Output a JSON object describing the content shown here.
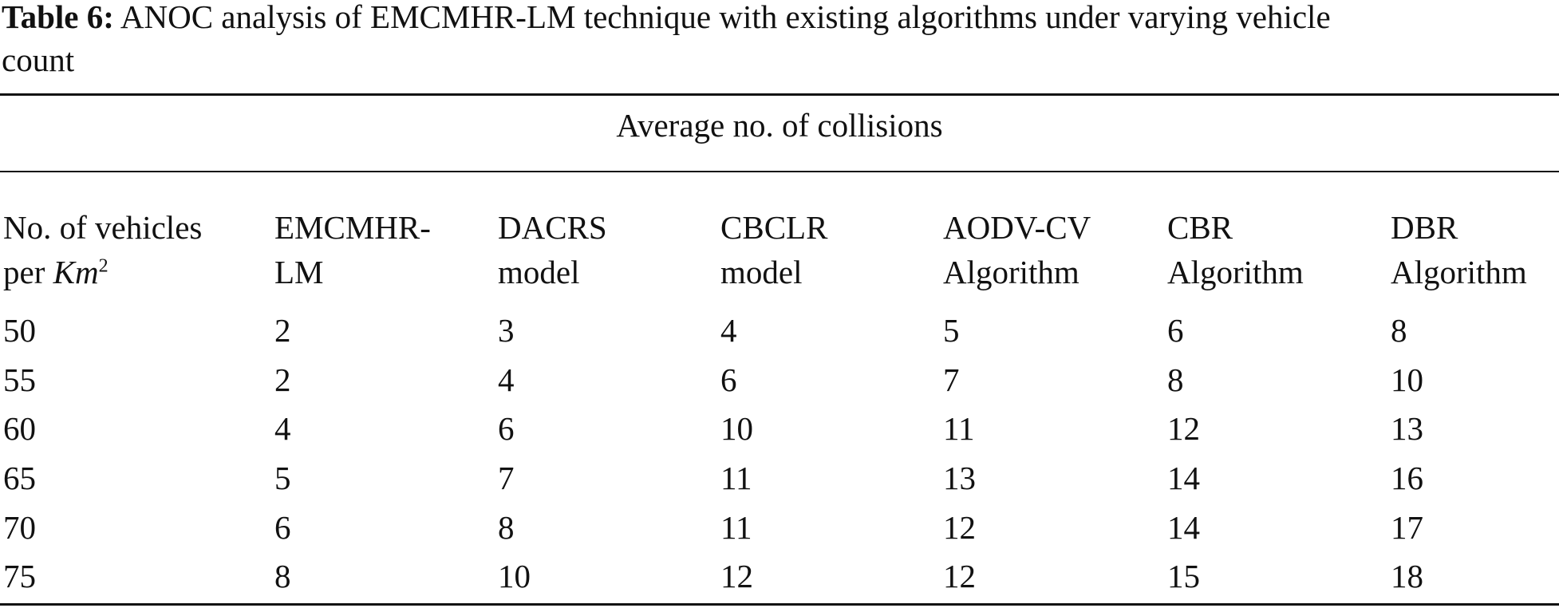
{
  "caption": {
    "label": "Table 6:",
    "text_line1": " ANOC analysis of EMCMHR-LM technique with existing algorithms under varying vehicle",
    "text_line2": "count"
  },
  "group_header": "Average no. of collisions",
  "columns": [
    {
      "line1": "No. of vehicles",
      "line2_prefix": "per ",
      "line2_unit": "Km",
      "line2_sup": "2"
    },
    {
      "line1": "EMCMHR-",
      "line2": "LM"
    },
    {
      "line1": "DACRS",
      "line2": "model"
    },
    {
      "line1": "CBCLR",
      "line2": "model"
    },
    {
      "line1": "AODV-CV",
      "line2": "Algorithm"
    },
    {
      "line1": "CBR",
      "line2": "Algorithm"
    },
    {
      "line1": "DBR",
      "line2": "Algorithm"
    }
  ],
  "rows": [
    [
      "50",
      "2",
      "3",
      "4",
      "5",
      "6",
      "8"
    ],
    [
      "55",
      "2",
      "4",
      "6",
      "7",
      "8",
      "10"
    ],
    [
      "60",
      "4",
      "6",
      "10",
      "11",
      "12",
      "13"
    ],
    [
      "65",
      "5",
      "7",
      "11",
      "13",
      "14",
      "16"
    ],
    [
      "70",
      "6",
      "8",
      "11",
      "12",
      "14",
      "17"
    ],
    [
      "75",
      "8",
      "10",
      "12",
      "12",
      "15",
      "18"
    ]
  ]
}
